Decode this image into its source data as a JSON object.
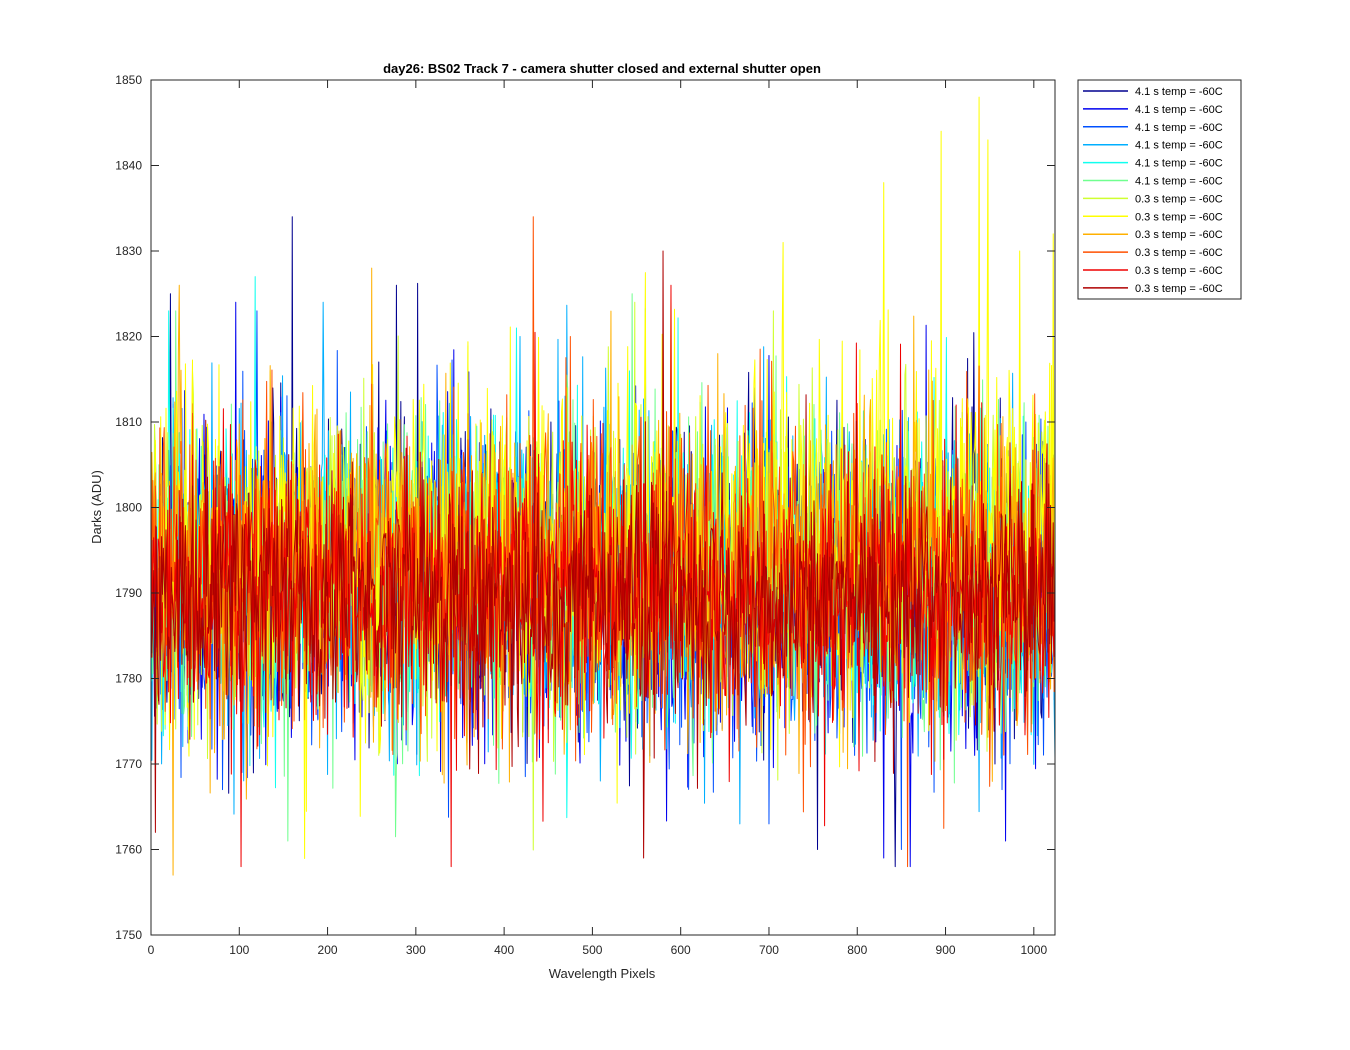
{
  "chart_data": {
    "type": "line",
    "title": "day26: BS02  Track 7 - camera shutter closed and external shutter open",
    "xlabel": "Wavelength Pixels",
    "ylabel": "Darks (ADU)",
    "xlim": [
      0,
      1024
    ],
    "ylim": [
      1750,
      1850
    ],
    "xticks": [
      0,
      100,
      200,
      300,
      400,
      500,
      600,
      700,
      800,
      900,
      1000
    ],
    "yticks": [
      1750,
      1760,
      1770,
      1780,
      1790,
      1800,
      1810,
      1820,
      1830,
      1840,
      1850
    ],
    "grid": false,
    "legend_position": "outside-top-right",
    "series": [
      {
        "name": "4.1 s temp = -60C",
        "color": "#00008F",
        "mean": 1792,
        "noise": 9,
        "trend": 0,
        "spikes": [
          [
            160,
            1834
          ],
          [
            278,
            1826
          ],
          [
            22,
            1825
          ],
          [
            755,
            1760
          ],
          [
            843,
            1758
          ]
        ]
      },
      {
        "name": "4.1 s temp = -60C",
        "color": "#0000EF",
        "mean": 1791,
        "noise": 9,
        "trend": -2,
        "spikes": [
          [
            96,
            1824
          ],
          [
            830,
            1759
          ],
          [
            860,
            1758
          ],
          [
            968,
            1761
          ]
        ]
      },
      {
        "name": "4.1 s temp = -60C",
        "color": "#0050FF",
        "mean": 1791,
        "noise": 9,
        "trend": -2,
        "spikes": [
          [
            120,
            1823
          ],
          [
            850,
            1760
          ],
          [
            700,
            1763
          ]
        ]
      },
      {
        "name": "4.1 s temp = -60C",
        "color": "#00AFFF",
        "mean": 1792,
        "noise": 9,
        "trend": -1,
        "spikes": [
          [
            195,
            1824
          ],
          [
            418,
            1820
          ],
          [
            667,
            1763
          ]
        ]
      },
      {
        "name": "4.1 s temp = -60C",
        "color": "#10FFEF",
        "mean": 1792,
        "noise": 9,
        "trend": 0,
        "spikes": [
          [
            118,
            1827
          ],
          [
            414,
            1821
          ],
          [
            20,
            1823
          ]
        ]
      },
      {
        "name": "4.1 s temp = -60C",
        "color": "#70FF8F",
        "mean": 1791,
        "noise": 9,
        "trend": 0,
        "spikes": [
          [
            28,
            1823
          ],
          [
            545,
            1825
          ],
          [
            155,
            1761
          ]
        ]
      },
      {
        "name": "0.3 s temp = -60C",
        "color": "#CFFF30",
        "mean": 1792,
        "noise": 9,
        "trend": 2,
        "spikes": [
          [
            548,
            1824
          ],
          [
            705,
            1823
          ]
        ]
      },
      {
        "name": "0.3 s temp = -60C",
        "color": "#FFFF00",
        "mean": 1793,
        "noise": 10,
        "trend": 7,
        "spikes": [
          [
            938,
            1848
          ],
          [
            895,
            1844
          ],
          [
            948,
            1843
          ],
          [
            830,
            1838
          ],
          [
            1022,
            1832
          ],
          [
            716,
            1831
          ]
        ]
      },
      {
        "name": "0.3 s temp = -60C",
        "color": "#FFB000",
        "mean": 1792,
        "noise": 9,
        "trend": 1,
        "spikes": [
          [
            32,
            1826
          ],
          [
            250,
            1828
          ],
          [
            642,
            1818
          ],
          [
            25,
            1757
          ]
        ]
      },
      {
        "name": "0.3 s temp = -60C",
        "color": "#FF5000",
        "mean": 1792,
        "noise": 9,
        "trend": 0,
        "spikes": [
          [
            433,
            1834
          ],
          [
            475,
            1820
          ],
          [
            857,
            1758
          ]
        ]
      },
      {
        "name": "0.3 s temp = -60C",
        "color": "#EF0000",
        "mean": 1790,
        "noise": 8,
        "trend": 0,
        "spikes": [
          [
            589,
            1826
          ],
          [
            102,
            1758
          ],
          [
            340,
            1758
          ]
        ]
      },
      {
        "name": "0.3 s temp = -60C",
        "color": "#AF0000",
        "mean": 1789,
        "noise": 7,
        "trend": 0,
        "spikes": [
          [
            580,
            1830
          ],
          [
            558,
            1759
          ],
          [
            5,
            1762
          ]
        ]
      }
    ]
  }
}
